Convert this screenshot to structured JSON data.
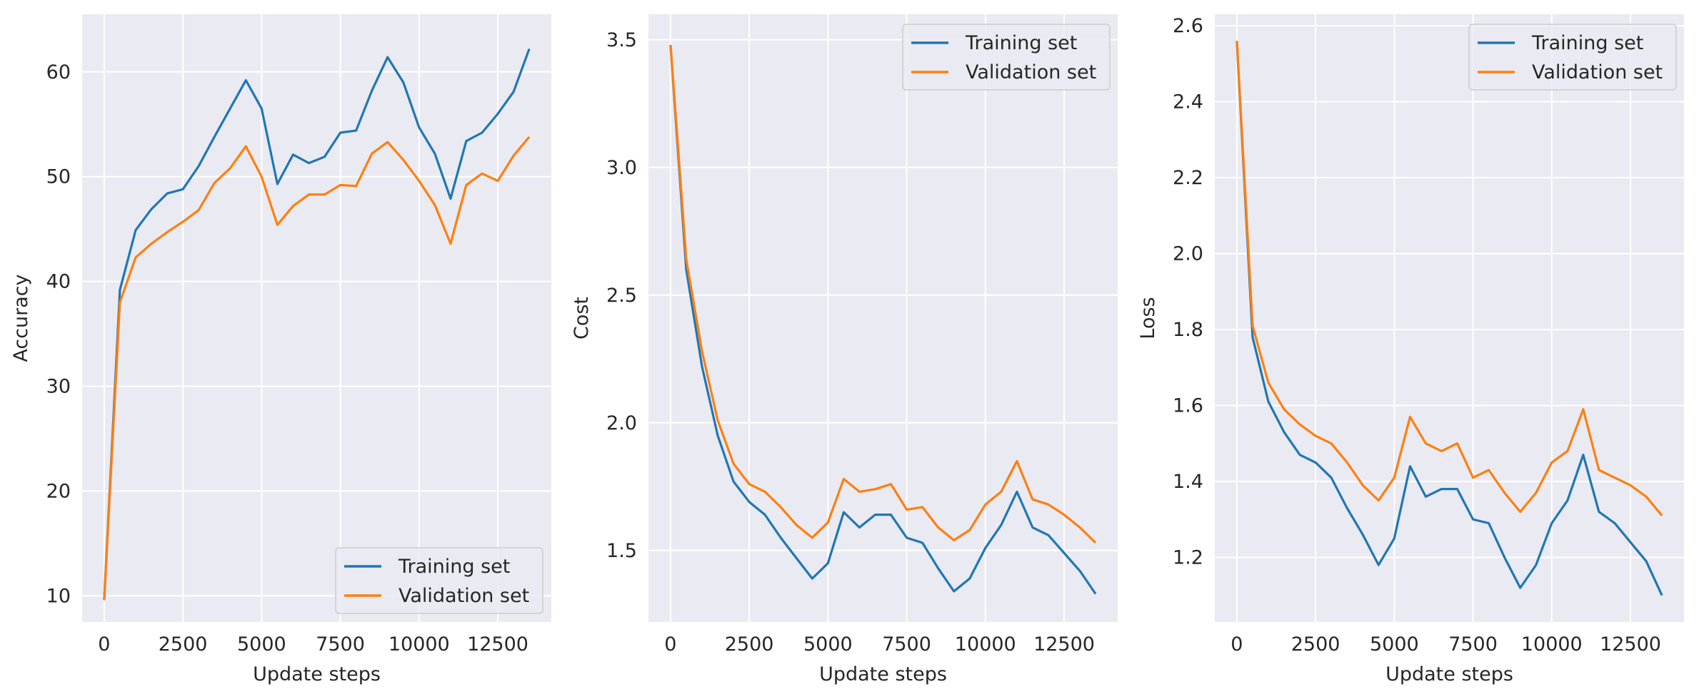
{
  "colors": {
    "training": "#1f77b4",
    "validation": "#ff7f0e",
    "background": "#eaeaf2",
    "grid": "#ffffff"
  },
  "chart_data": [
    {
      "type": "line",
      "xlabel": "Update steps",
      "ylabel": "Accuracy",
      "xlim": [
        -700,
        14200
      ],
      "ylim": [
        7.5,
        65.5
      ],
      "xticks": [
        0,
        2500,
        5000,
        7500,
        10000,
        12500
      ],
      "xtick_labels": [
        "0",
        "2500",
        "5000",
        "7500",
        "10000",
        "12500"
      ],
      "yticks": [
        10,
        20,
        30,
        40,
        50,
        60
      ],
      "ytick_labels": [
        "10",
        "20",
        "30",
        "40",
        "50",
        "60"
      ],
      "grid": true,
      "legend": "lower-right",
      "x": [
        0,
        500,
        1000,
        1500,
        2000,
        2500,
        3000,
        3500,
        4000,
        4500,
        5000,
        5500,
        6000,
        6500,
        7000,
        7500,
        8000,
        8500,
        9000,
        9500,
        10000,
        10500,
        11000,
        11500,
        12000,
        12500,
        13000,
        13500
      ],
      "series": [
        {
          "name": "Training set",
          "color": "#1f77b4",
          "values": [
            9.6,
            39.2,
            44.9,
            46.9,
            48.4,
            48.8,
            51.0,
            53.8,
            56.5,
            59.2,
            56.5,
            49.3,
            52.1,
            51.3,
            51.9,
            54.2,
            54.4,
            58.2,
            61.4,
            59.0,
            54.7,
            52.2,
            47.9,
            53.4,
            54.2,
            56.0,
            58.1,
            62.2
          ]
        },
        {
          "name": "Validation set",
          "color": "#ff7f0e",
          "values": [
            9.6,
            38.0,
            42.3,
            43.6,
            44.7,
            45.7,
            46.8,
            49.4,
            50.8,
            52.9,
            50.0,
            45.4,
            47.2,
            48.3,
            48.3,
            49.2,
            49.1,
            52.2,
            53.3,
            51.6,
            49.6,
            47.3,
            43.6,
            49.2,
            50.3,
            49.6,
            52.0,
            53.8
          ]
        }
      ]
    },
    {
      "type": "line",
      "xlabel": "Update steps",
      "ylabel": "Cost",
      "xlim": [
        -700,
        14200
      ],
      "ylim": [
        1.22,
        3.6
      ],
      "xticks": [
        0,
        2500,
        5000,
        7500,
        10000,
        12500
      ],
      "xtick_labels": [
        "0",
        "2500",
        "5000",
        "7500",
        "10000",
        "12500"
      ],
      "yticks": [
        1.5,
        2.0,
        2.5,
        3.0,
        3.5
      ],
      "ytick_labels": [
        "1.5",
        "2.0",
        "2.5",
        "3.0",
        "3.5"
      ],
      "grid": true,
      "legend": "upper-right",
      "x": [
        0,
        500,
        1000,
        1500,
        2000,
        2500,
        3000,
        3500,
        4000,
        4500,
        5000,
        5500,
        6000,
        6500,
        7000,
        7500,
        8000,
        8500,
        9000,
        9500,
        10000,
        10500,
        11000,
        11500,
        12000,
        12500,
        13000,
        13500
      ],
      "series": [
        {
          "name": "Training set",
          "color": "#1f77b4",
          "values": [
            3.48,
            2.6,
            2.22,
            1.95,
            1.77,
            1.69,
            1.64,
            1.55,
            1.47,
            1.39,
            1.45,
            1.65,
            1.59,
            1.64,
            1.64,
            1.55,
            1.53,
            1.43,
            1.34,
            1.39,
            1.51,
            1.6,
            1.73,
            1.59,
            1.56,
            1.49,
            1.42,
            1.33
          ]
        },
        {
          "name": "Validation set",
          "color": "#ff7f0e",
          "values": [
            3.48,
            2.64,
            2.28,
            2.01,
            1.84,
            1.76,
            1.73,
            1.67,
            1.6,
            1.55,
            1.61,
            1.78,
            1.73,
            1.74,
            1.76,
            1.66,
            1.67,
            1.59,
            1.54,
            1.58,
            1.68,
            1.73,
            1.85,
            1.7,
            1.68,
            1.64,
            1.59,
            1.53
          ]
        }
      ]
    },
    {
      "type": "line",
      "xlabel": "Update steps",
      "ylabel": "Loss",
      "xlim": [
        -700,
        14200
      ],
      "ylim": [
        1.03,
        2.63
      ],
      "xticks": [
        0,
        2500,
        5000,
        7500,
        10000,
        12500
      ],
      "xtick_labels": [
        "0",
        "2500",
        "5000",
        "7500",
        "10000",
        "12500"
      ],
      "yticks": [
        1.2,
        1.4,
        1.6,
        1.8,
        2.0,
        2.2,
        2.4,
        2.6
      ],
      "ytick_labels": [
        "1.2",
        "1.4",
        "1.6",
        "1.8",
        "2.0",
        "2.2",
        "2.4",
        "2.6"
      ],
      "grid": true,
      "legend": "upper-right",
      "x": [
        0,
        500,
        1000,
        1500,
        2000,
        2500,
        3000,
        3500,
        4000,
        4500,
        5000,
        5500,
        6000,
        6500,
        7000,
        7500,
        8000,
        8500,
        9000,
        9500,
        10000,
        10500,
        11000,
        11500,
        12000,
        12500,
        13000,
        13500
      ],
      "series": [
        {
          "name": "Training set",
          "color": "#1f77b4",
          "values": [
            2.56,
            1.78,
            1.61,
            1.53,
            1.47,
            1.45,
            1.41,
            1.33,
            1.26,
            1.18,
            1.25,
            1.44,
            1.36,
            1.38,
            1.38,
            1.3,
            1.29,
            1.2,
            1.12,
            1.18,
            1.29,
            1.35,
            1.47,
            1.32,
            1.29,
            1.24,
            1.19,
            1.1
          ]
        },
        {
          "name": "Validation set",
          "color": "#ff7f0e",
          "values": [
            2.56,
            1.81,
            1.66,
            1.59,
            1.55,
            1.52,
            1.5,
            1.45,
            1.39,
            1.35,
            1.41,
            1.57,
            1.5,
            1.48,
            1.5,
            1.41,
            1.43,
            1.37,
            1.32,
            1.37,
            1.45,
            1.48,
            1.59,
            1.43,
            1.41,
            1.39,
            1.36,
            1.31
          ]
        }
      ]
    }
  ]
}
